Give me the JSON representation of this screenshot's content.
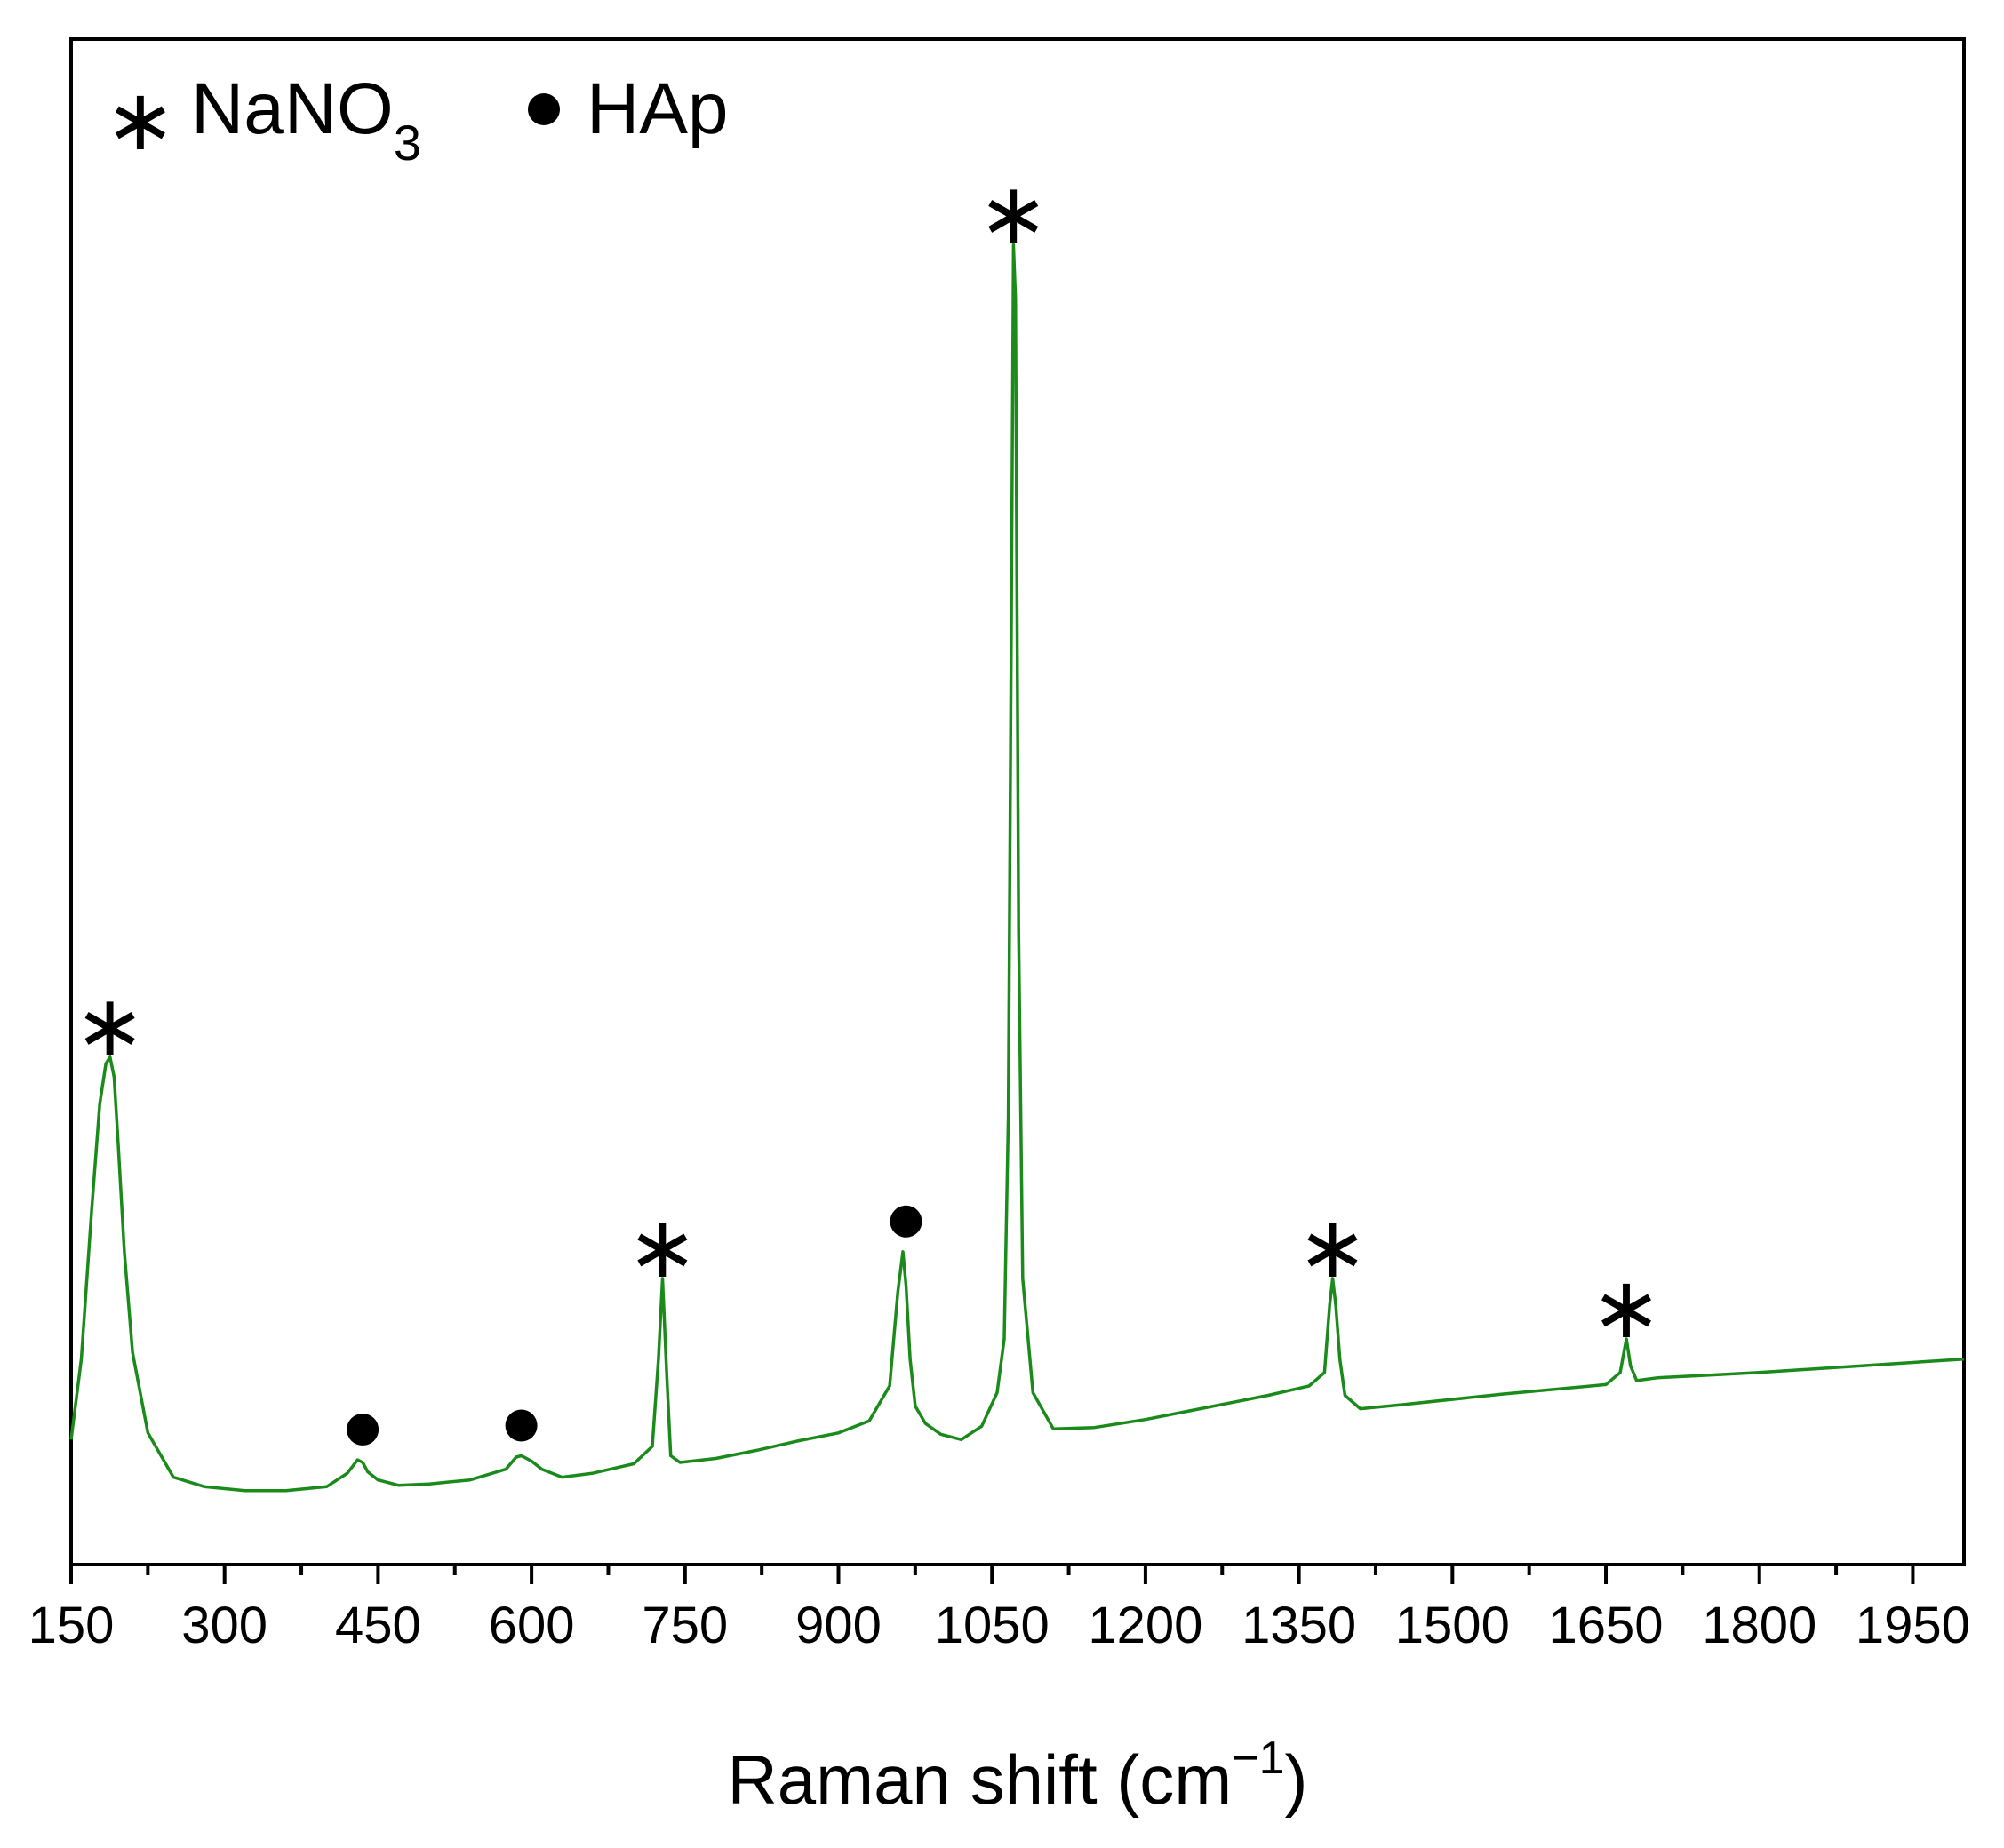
{
  "chart_data": {
    "type": "line",
    "title": "",
    "xlabel": "Raman shift (cm",
    "xlabel_superscript": "−1",
    "xlabel_close": ")",
    "ylabel": "",
    "xlim": [
      150,
      2000
    ],
    "ylim": [
      0,
      100
    ],
    "x_ticks": [
      150,
      300,
      450,
      600,
      750,
      900,
      1050,
      1200,
      1350,
      1500,
      1650,
      1800,
      1950
    ],
    "y_ticks_shown": false,
    "grid": false,
    "line_color": "#1a8a1a",
    "legend": {
      "placement": "top-left",
      "entries": [
        {
          "symbol": "∗",
          "label": "NaNO",
          "subscript": "3",
          "shape": "asterisk"
        },
        {
          "symbol": "●",
          "label": "HAp",
          "subscript": "",
          "shape": "dot"
        }
      ]
    },
    "series": [
      {
        "x": [
          150,
          160,
          170,
          178,
          184,
          188,
          192,
          196,
          202,
          210,
          225,
          250,
          280,
          320,
          360,
          400,
          420,
          430,
          435,
          440,
          450,
          470,
          500,
          540,
          575,
          585,
          590,
          595,
          600,
          610,
          630,
          660,
          700,
          718,
          724,
          728,
          732,
          736,
          745,
          780,
          820,
          860,
          900,
          930,
          950,
          958,
          963,
          966,
          970,
          975,
          985,
          1000,
          1020,
          1040,
          1055,
          1062,
          1066,
          1069,
          1071,
          1073,
          1076,
          1080,
          1090,
          1110,
          1150,
          1200,
          1260,
          1320,
          1360,
          1375,
          1380,
          1383,
          1386,
          1390,
          1395,
          1410,
          1450,
          1550,
          1650,
          1664,
          1670,
          1674,
          1680,
          1700,
          1800,
          1900,
          2000
        ],
        "y": [
          6,
          12,
          23,
          31,
          34,
          34.5,
          33,
          28,
          20,
          12.5,
          6.5,
          3.2,
          2.5,
          2.2,
          2.2,
          2.5,
          3.5,
          4.5,
          4.3,
          3.6,
          3.0,
          2.6,
          2.7,
          3.0,
          3.8,
          4.7,
          4.8,
          4.6,
          4.4,
          3.8,
          3.2,
          3.5,
          4.2,
          5.5,
          12,
          18,
          11,
          4.8,
          4.3,
          4.6,
          5.2,
          5.9,
          6.5,
          7.4,
          10,
          17,
          20,
          17.5,
          12,
          8.5,
          7.2,
          6.4,
          6.0,
          7.0,
          9.5,
          13.5,
          30,
          68,
          95,
          91,
          44,
          18,
          9.5,
          6.8,
          6.9,
          7.5,
          8.4,
          9.3,
          10,
          11,
          16,
          18,
          16,
          12,
          9.3,
          8.3,
          8.6,
          9.4,
          10.1,
          11,
          13.5,
          11.5,
          10.4,
          10.6,
          11,
          11.5,
          12
        ]
      }
    ],
    "annotations": [
      {
        "marker": "asterisk",
        "symbol": "∗",
        "x": 188,
        "y": 34.5
      },
      {
        "marker": "dot",
        "symbol": "●",
        "x": 435,
        "y": 4.5
      },
      {
        "marker": "dot",
        "symbol": "●",
        "x": 590,
        "y": 4.8
      },
      {
        "marker": "asterisk",
        "symbol": "∗",
        "x": 728,
        "y": 18
      },
      {
        "marker": "dot",
        "symbol": "●",
        "x": 966,
        "y": 20
      },
      {
        "marker": "asterisk",
        "symbol": "∗",
        "x": 1071,
        "y": 95
      },
      {
        "marker": "asterisk",
        "symbol": "∗",
        "x": 1383,
        "y": 18
      },
      {
        "marker": "asterisk",
        "symbol": "∗",
        "x": 1670,
        "y": 13.5
      }
    ]
  }
}
